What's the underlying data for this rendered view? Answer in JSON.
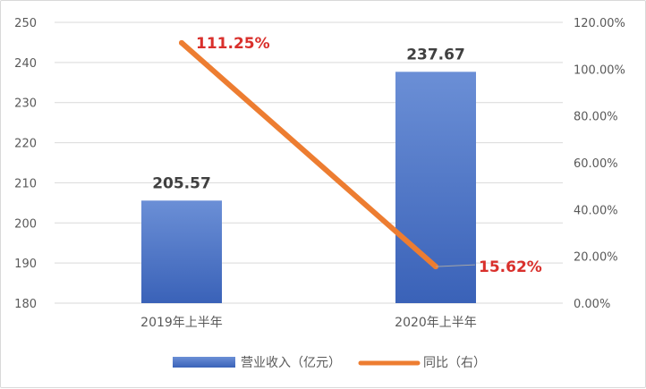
{
  "chart_data": {
    "type": "bar",
    "categories": [
      "2019年上半年",
      "2020年上半年"
    ],
    "series": [
      {
        "name": "营业收入（亿元）",
        "type": "bar",
        "axis": "left",
        "values": [
          205.57,
          237.67
        ],
        "labels": [
          "205.57",
          "237.67"
        ],
        "color": "#4472c4"
      },
      {
        "name": "同比（右）",
        "type": "line",
        "axis": "right",
        "values": [
          111.25,
          15.62
        ],
        "labels": [
          "111.25%",
          "15.62%"
        ],
        "color": "#ed7d31"
      }
    ],
    "y_left": {
      "min": 180,
      "max": 250,
      "ticks": [
        "180",
        "190",
        "200",
        "210",
        "220",
        "230",
        "240",
        "250"
      ]
    },
    "y_right": {
      "min": 0,
      "max": 120,
      "ticks": [
        "0.00%",
        "20.00%",
        "40.00%",
        "60.00%",
        "80.00%",
        "100.00%",
        "120.00%"
      ]
    },
    "grid": true,
    "legend": "bottom",
    "label_color": "#d9302c"
  }
}
